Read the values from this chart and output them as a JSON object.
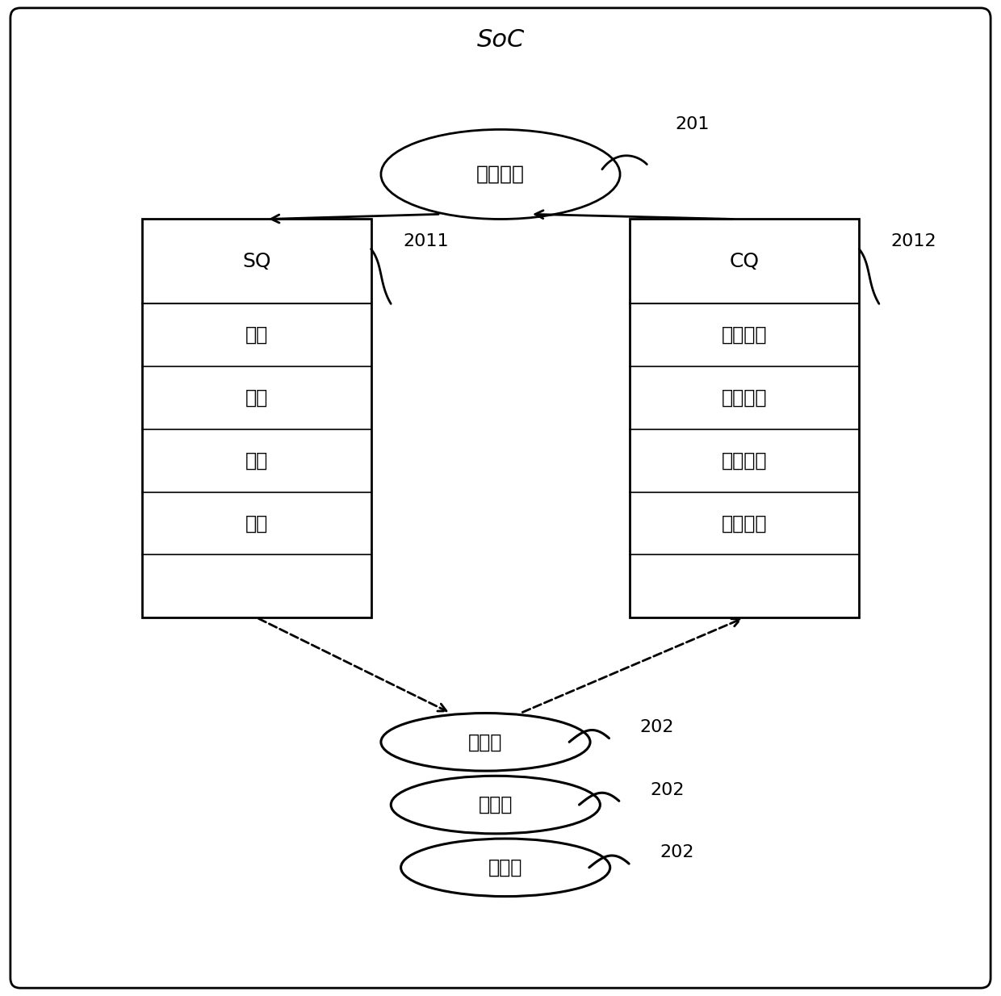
{
  "title": "SoC",
  "driver_label": "驱动模块",
  "driver_ref": "201",
  "sq_label": "SQ",
  "sq_ref": "2011",
  "cq_label": "CQ",
  "cq_ref": "2012",
  "sq_rows": [
    "命令",
    "命令",
    "命令",
    "命令"
  ],
  "cq_rows": [
    "执行结果",
    "执行结果",
    "执行结果",
    "执行结果"
  ],
  "accel_label": "加速器",
  "accel_ref": "202",
  "bg_color": "#ffffff",
  "border_color": "#000000",
  "text_color": "#000000",
  "font_size_title": 22,
  "font_size_label": 18,
  "font_size_ref": 16,
  "font_size_cell": 17
}
